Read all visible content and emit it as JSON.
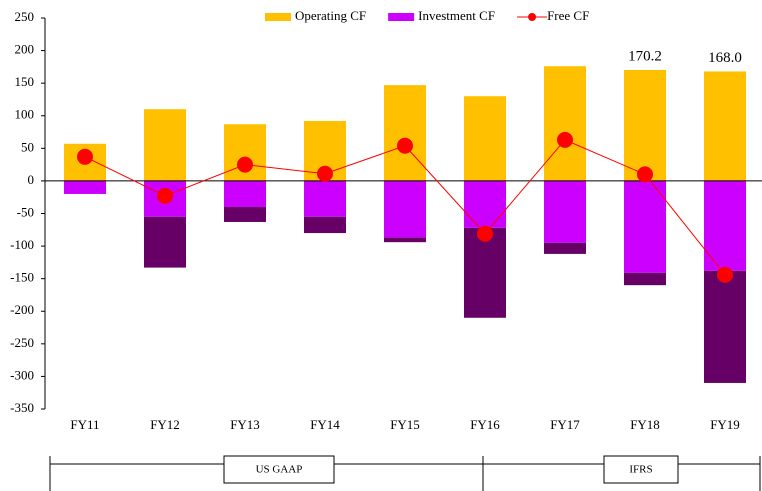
{
  "chart_data": {
    "type": "bar",
    "stacked": true,
    "categories": [
      "FY11",
      "FY12",
      "FY13",
      "FY14",
      "FY15",
      "FY16",
      "FY17",
      "FY18",
      "FY19"
    ],
    "series": [
      {
        "name": "Operating CF",
        "color": "#FFC000",
        "values": [
          57,
          110,
          87,
          92,
          147,
          130,
          176,
          170.2,
          168.0
        ],
        "value_labels": [
          null,
          null,
          null,
          null,
          null,
          null,
          null,
          "170.2",
          "168.0"
        ]
      },
      {
        "name": "Investment CF",
        "color": "#CC00FF",
        "values": [
          -20,
          -55,
          -40,
          -55,
          -87,
          -72,
          -95,
          -141,
          -138
        ]
      },
      {
        "color": "#660066",
        "values": [
          0,
          -78,
          -23,
          -25,
          -7,
          -138,
          -17,
          -19,
          -172
        ]
      },
      {
        "name": "Free CF",
        "type": "line",
        "color": "#FF0000",
        "values": [
          37,
          -23,
          25,
          11,
          54,
          -81,
          63,
          10,
          -144
        ]
      }
    ],
    "ylim": [
      -350,
      250
    ],
    "yticks": [
      -350,
      -300,
      -250,
      -200,
      -150,
      -100,
      -50,
      0,
      50,
      100,
      150,
      200,
      250
    ],
    "legend": "top",
    "regimes": [
      "US GAAP",
      "IFRS"
    ]
  }
}
